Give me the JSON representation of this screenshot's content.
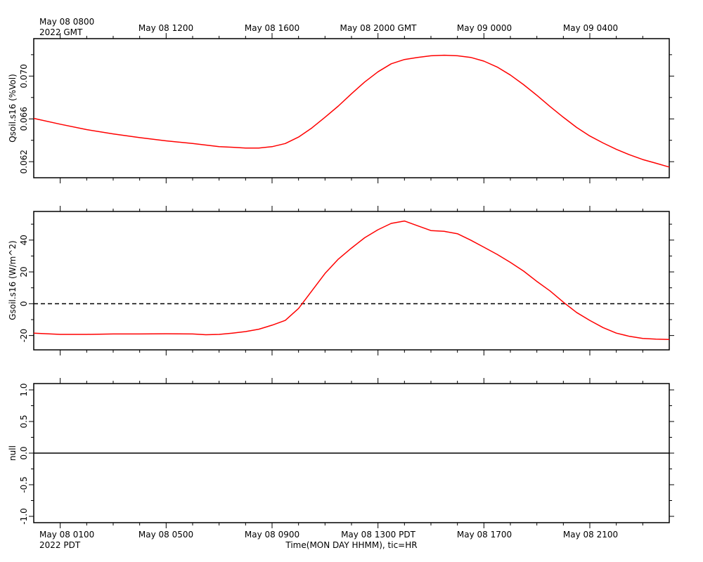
{
  "top_axis": {
    "corner_line1": "May 08 0800",
    "corner_line2": "2022 GMT",
    "ticks": [
      "May 08 1200",
      "May 08 1600",
      "May 08 2000 GMT",
      "May 09 0000",
      "May 09 0400"
    ]
  },
  "bottom_axis": {
    "corner_line1": "May 08 0100",
    "corner_line2": "2022 PDT",
    "ticks": [
      "May 08 0500",
      "May 08 0900",
      "May 08 1300 PDT",
      "May 08 1700",
      "May 08 2100"
    ],
    "label": "Time(MON DAY HHMM), tic=HR"
  },
  "colors": {
    "series": "#ff0000",
    "axis": "#000000",
    "zero_line": "#000000"
  },
  "chart_data": [
    {
      "type": "line",
      "ylabel": "Qsoil.s16 (%Vol)",
      "x_unit": "hours since May 08 0100 PDT",
      "xlim": [
        -1,
        23
      ],
      "ylim": [
        0.0605,
        0.0735
      ],
      "yticks": [
        "0.062",
        "0.066",
        "0.070"
      ],
      "grid": false,
      "series": [
        {
          "x": [
            -1,
            0,
            1,
            2,
            3,
            4,
            5,
            6,
            6.5,
            7,
            7.5,
            8,
            8.5,
            9,
            9.5,
            10,
            10.5,
            11,
            11.5,
            12,
            12.5,
            13,
            13.5,
            14,
            14.5,
            15,
            15.5,
            16,
            16.5,
            17,
            17.5,
            18,
            18.5,
            19,
            19.5,
            20,
            20.5,
            21,
            21.5,
            22,
            22.5,
            23
          ],
          "y": [
            0.06605,
            0.0655,
            0.065,
            0.0646,
            0.06425,
            0.06395,
            0.0637,
            0.0634,
            0.06335,
            0.06328,
            0.06328,
            0.0634,
            0.0637,
            0.0643,
            0.06515,
            0.06615,
            0.0672,
            0.06835,
            0.06945,
            0.0704,
            0.07115,
            0.07155,
            0.07175,
            0.0719,
            0.07195,
            0.0719,
            0.07175,
            0.0714,
            0.07085,
            0.0701,
            0.0692,
            0.0682,
            0.06715,
            0.06615,
            0.0652,
            0.0644,
            0.06375,
            0.06315,
            0.06265,
            0.0622,
            0.06185,
            0.0615
          ]
        }
      ]
    },
    {
      "type": "line",
      "ylabel": "Gsoil.s16 (W/m^2)",
      "x_unit": "hours since May 08 0100 PDT",
      "xlim": [
        -1,
        23
      ],
      "ylim": [
        -29,
        58
      ],
      "yticks": [
        "-20",
        "0",
        "20",
        "40"
      ],
      "zero_line": true,
      "grid": false,
      "series": [
        {
          "x": [
            -1,
            0,
            1,
            2,
            3,
            4,
            5,
            5.5,
            6,
            6.5,
            7,
            7.5,
            8,
            8.5,
            9,
            9.5,
            10,
            10.5,
            11,
            11.5,
            12,
            12.5,
            13,
            13.5,
            14,
            14.5,
            15,
            15.5,
            16,
            16.5,
            17,
            17.5,
            18,
            18.5,
            19,
            19.5,
            20,
            20.5,
            21,
            21.5,
            22,
            22.5,
            23
          ],
          "y": [
            -18.5,
            -19.3,
            -19.3,
            -19.0,
            -19.0,
            -18.9,
            -19.0,
            -19.5,
            -19.3,
            -18.5,
            -17.5,
            -16.0,
            -13.5,
            -10.5,
            -3.0,
            8.0,
            19.0,
            28.0,
            35.0,
            41.5,
            46.5,
            50.5,
            52.0,
            49.0,
            46.0,
            45.5,
            44.0,
            40.0,
            35.5,
            31.0,
            26.0,
            20.5,
            14.0,
            8.0,
            1.0,
            -5.5,
            -10.5,
            -15.0,
            -18.5,
            -20.5,
            -21.8,
            -22.3,
            -22.5
          ]
        }
      ]
    },
    {
      "type": "line",
      "ylabel": "null",
      "x_unit": "hours since May 08 0100 PDT",
      "xlim": [
        -1,
        23
      ],
      "ylim": [
        -1.1,
        1.1
      ],
      "yticks": [
        "-1.0",
        "-0.5",
        "0.0",
        "0.5",
        "1.0"
      ],
      "grid": false,
      "series": [
        {
          "x": [
            -1,
            23
          ],
          "y": [
            0.0,
            0.0
          ]
        }
      ]
    }
  ]
}
